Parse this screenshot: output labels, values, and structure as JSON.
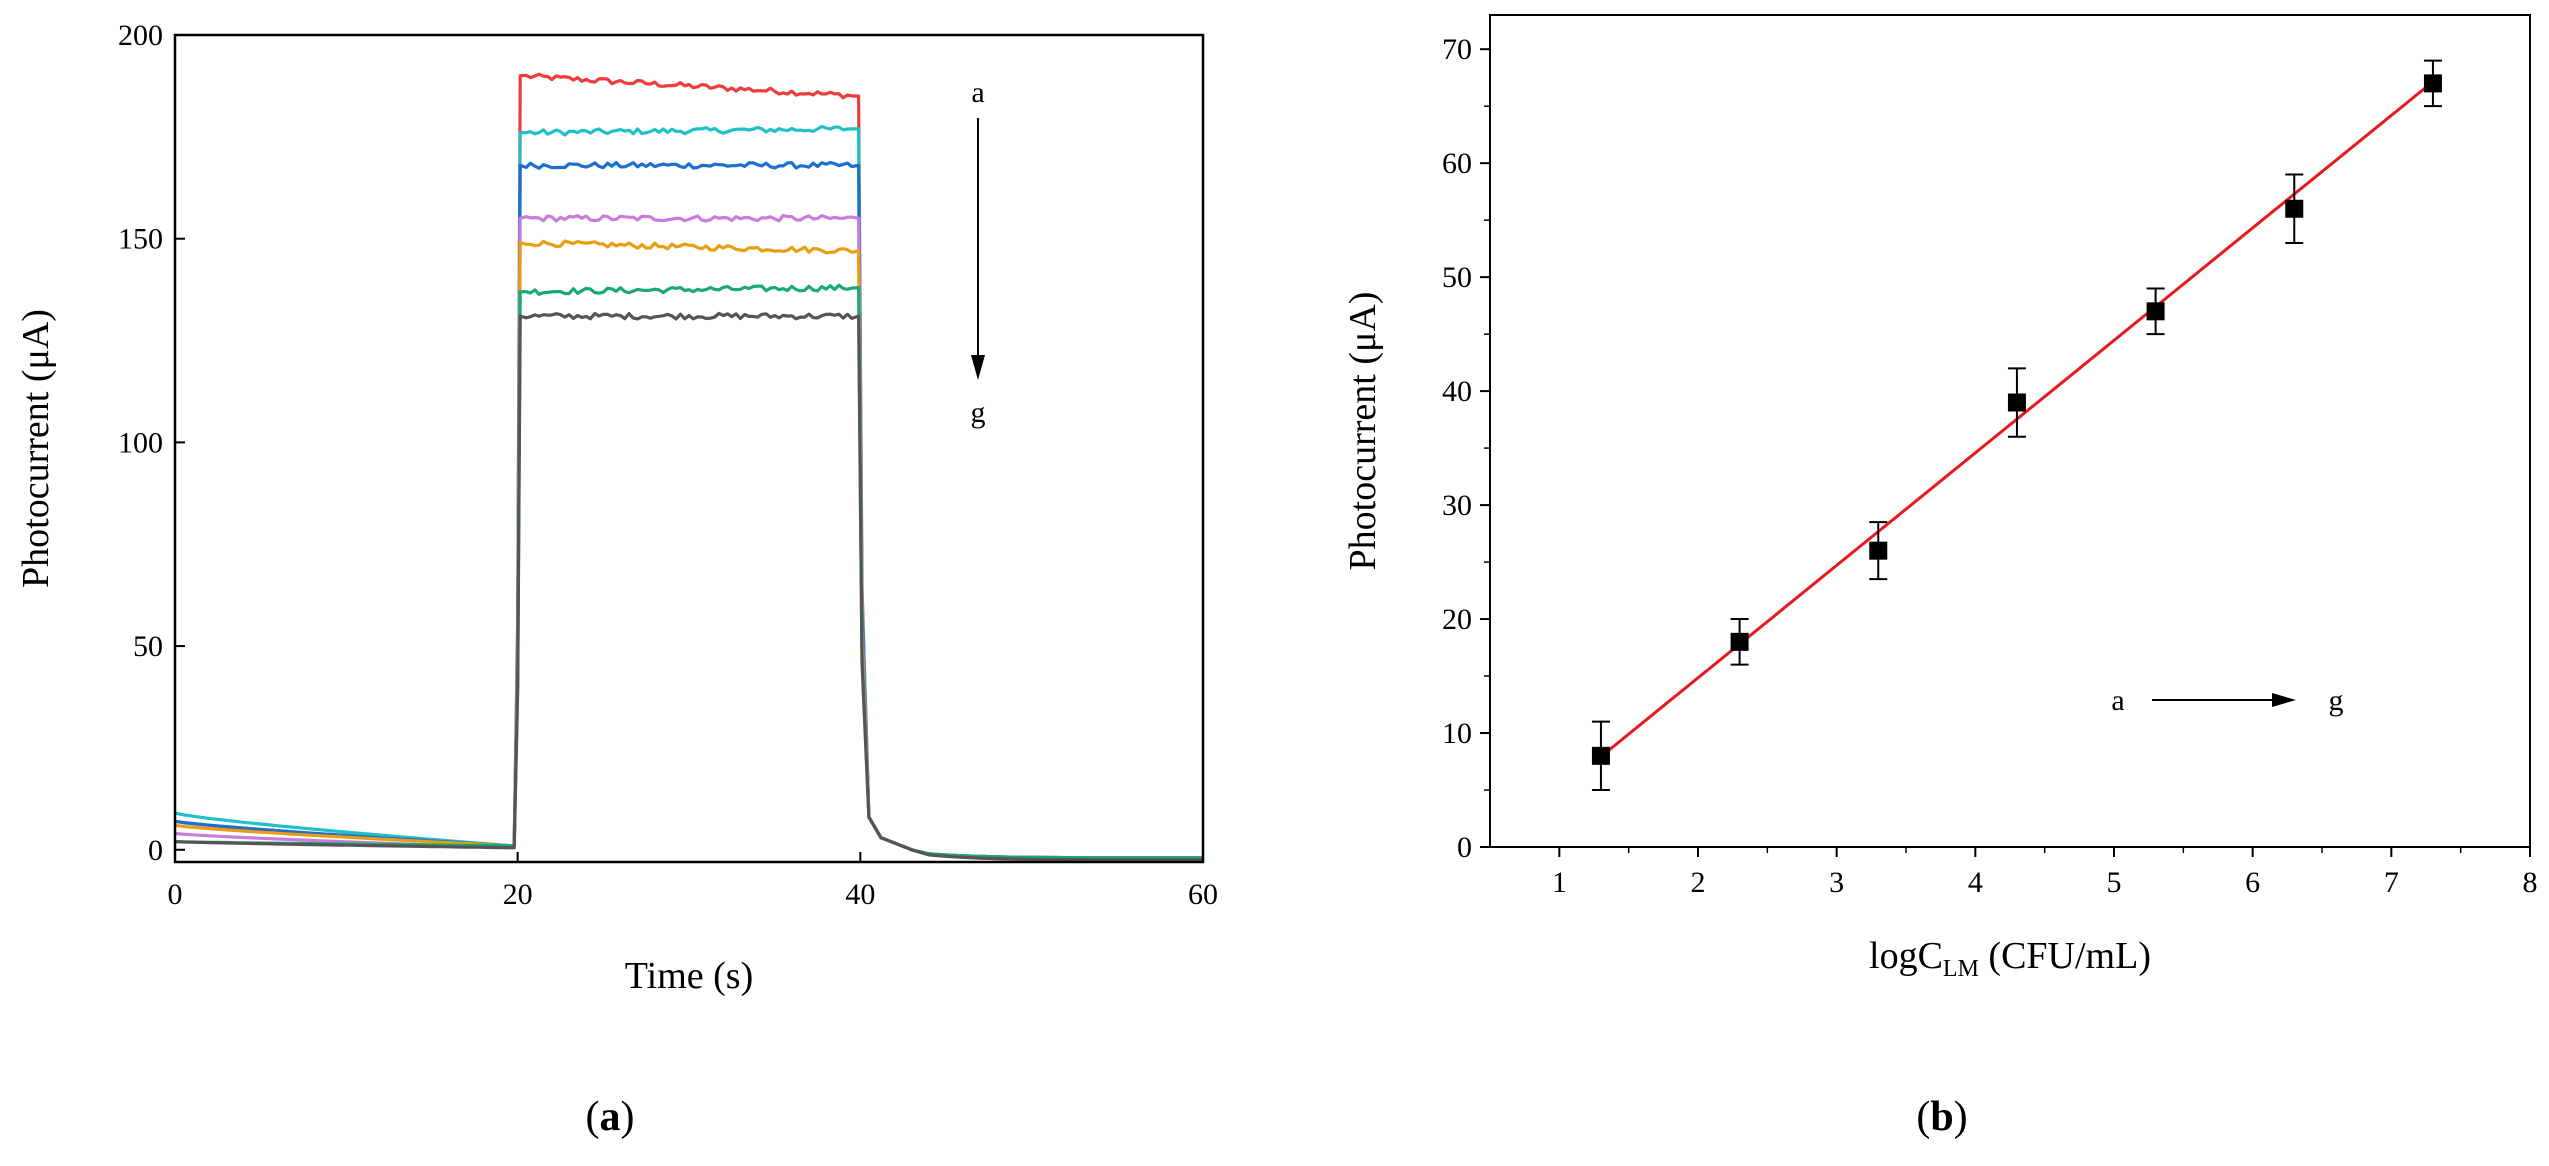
{
  "figure": {
    "panel_a_label": {
      "open": "(",
      "letter": "a",
      "close": ")"
    },
    "panel_b_label": {
      "open": "(",
      "letter": "b",
      "close": ")"
    }
  },
  "chart_data": [
    {
      "id": "a",
      "type": "line",
      "xlabel": "Time (s)",
      "ylabel": "Photocurrent (μA)",
      "xlim": [
        0,
        60
      ],
      "ylim": [
        -3,
        200
      ],
      "xticks": [
        0,
        20,
        40,
        60
      ],
      "yticks": [
        0,
        50,
        100,
        150,
        200
      ],
      "grid": false,
      "legend": "none",
      "light_on": 20,
      "light_off": 40,
      "arrow": {
        "start_label": "a",
        "end_label": "g",
        "direction": "down"
      },
      "series": [
        {
          "color": "#ee3b3b",
          "dark_start": 7,
          "dark_end": 1,
          "on_start": 190,
          "on_end": 185,
          "after": -2
        },
        {
          "color": "#20c0c8",
          "dark_start": 9,
          "dark_end": 1,
          "on_start": 176,
          "on_end": 177,
          "after": -2
        },
        {
          "color": "#1a6fd0",
          "dark_start": 7,
          "dark_end": 1,
          "on_start": 168,
          "on_end": 168,
          "after": -2
        },
        {
          "color": "#c77ddc",
          "dark_start": 4,
          "dark_end": 0.5,
          "on_start": 155,
          "on_end": 155,
          "after": -2.5
        },
        {
          "color": "#e89e10",
          "dark_start": 6,
          "dark_end": 1,
          "on_start": 149,
          "on_end": 147,
          "after": -2
        },
        {
          "color": "#1aa878",
          "dark_start": 2,
          "dark_end": 1,
          "on_start": 137,
          "on_end": 138,
          "after": -2
        },
        {
          "color": "#555555",
          "dark_start": 2,
          "dark_end": 0.5,
          "on_start": 131,
          "on_end": 131,
          "after": -2.5
        }
      ]
    },
    {
      "id": "b",
      "type": "scatter",
      "xlabel_main": "logC",
      "xlabel_sub": "LM",
      "xlabel_unit": " (CFU/mL)",
      "ylabel": "Photocurrent (μA)",
      "xlim": [
        0.5,
        8
      ],
      "ylim": [
        0,
        73
      ],
      "xticks": [
        1,
        2,
        3,
        4,
        5,
        6,
        7,
        8
      ],
      "yticks": [
        0,
        10,
        20,
        30,
        40,
        50,
        60,
        70
      ],
      "grid": false,
      "legend": "none",
      "x": [
        1.3,
        2.3,
        3.3,
        4.3,
        5.3,
        6.3,
        7.3
      ],
      "y": [
        8,
        18,
        26,
        39,
        47,
        56,
        67
      ],
      "error": [
        3,
        2,
        2.5,
        3,
        2,
        3,
        2
      ],
      "fit": {
        "slope": 9.87,
        "intercept": -4.9,
        "x_range": [
          1.3,
          7.3
        ],
        "color": "#e8191e"
      },
      "arrow": {
        "start_label": "a",
        "end_label": "g",
        "direction": "right"
      }
    }
  ]
}
